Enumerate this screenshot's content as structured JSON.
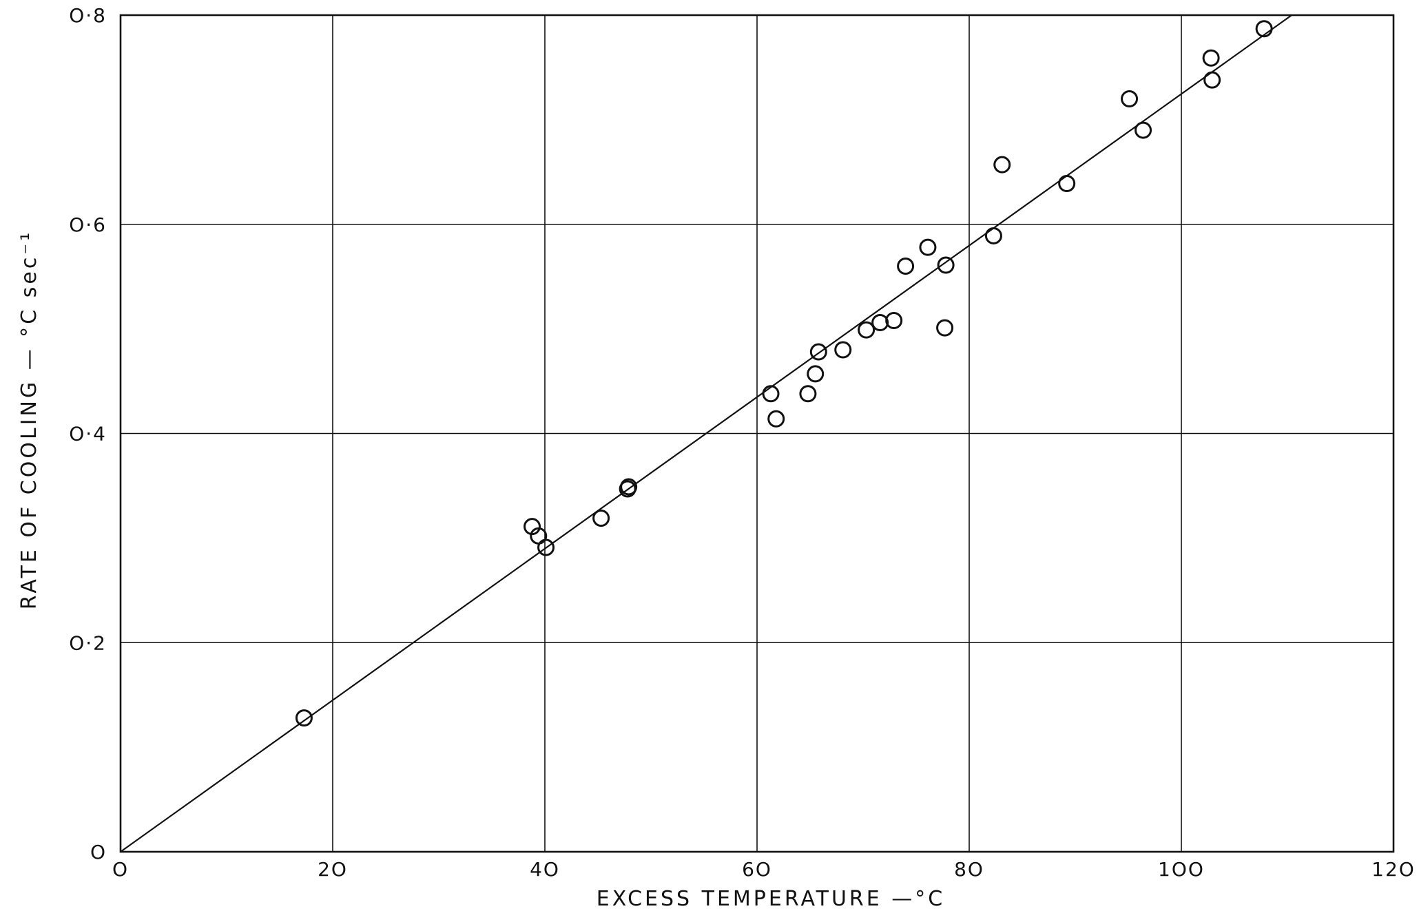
{
  "chart_data": {
    "type": "scatter",
    "title": "",
    "xlabel": "EXCESS TEMPERATURE —°C",
    "ylabel": "RATE OF COOLING — °C sec⁻¹",
    "xlim": [
      0,
      120
    ],
    "ylim": [
      0,
      0.8
    ],
    "x_ticks": [
      0,
      20,
      40,
      60,
      80,
      100,
      120
    ],
    "x_tick_labels": [
      "O",
      "2O",
      "4O",
      "6O",
      "8O",
      "1OO",
      "12O"
    ],
    "y_ticks": [
      0,
      0.2,
      0.4,
      0.6,
      0.8
    ],
    "y_tick_labels": [
      "O",
      "O·2",
      "O·4",
      "O·6",
      "O·8"
    ],
    "grid": true,
    "marker": "open-circle",
    "points": [
      {
        "x": 17.3,
        "y": 0.128
      },
      {
        "x": 38.8,
        "y": 0.311
      },
      {
        "x": 39.4,
        "y": 0.302
      },
      {
        "x": 40.1,
        "y": 0.291
      },
      {
        "x": 45.3,
        "y": 0.319
      },
      {
        "x": 47.8,
        "y": 0.347
      },
      {
        "x": 47.9,
        "y": 0.349
      },
      {
        "x": 61.3,
        "y": 0.438
      },
      {
        "x": 61.8,
        "y": 0.414
      },
      {
        "x": 64.8,
        "y": 0.438
      },
      {
        "x": 65.5,
        "y": 0.457
      },
      {
        "x": 65.8,
        "y": 0.478
      },
      {
        "x": 68.1,
        "y": 0.48
      },
      {
        "x": 70.3,
        "y": 0.499
      },
      {
        "x": 71.6,
        "y": 0.506
      },
      {
        "x": 72.9,
        "y": 0.508
      },
      {
        "x": 74.0,
        "y": 0.56
      },
      {
        "x": 76.1,
        "y": 0.578
      },
      {
        "x": 77.8,
        "y": 0.561
      },
      {
        "x": 77.7,
        "y": 0.501
      },
      {
        "x": 82.3,
        "y": 0.589
      },
      {
        "x": 83.1,
        "y": 0.657
      },
      {
        "x": 89.2,
        "y": 0.639
      },
      {
        "x": 95.1,
        "y": 0.72
      },
      {
        "x": 96.4,
        "y": 0.69
      },
      {
        "x": 102.8,
        "y": 0.759
      },
      {
        "x": 102.9,
        "y": 0.738
      },
      {
        "x": 107.8,
        "y": 0.787
      }
    ],
    "fit_line": {
      "x": [
        0,
        110.4
      ],
      "y": [
        0,
        0.8
      ]
    }
  }
}
